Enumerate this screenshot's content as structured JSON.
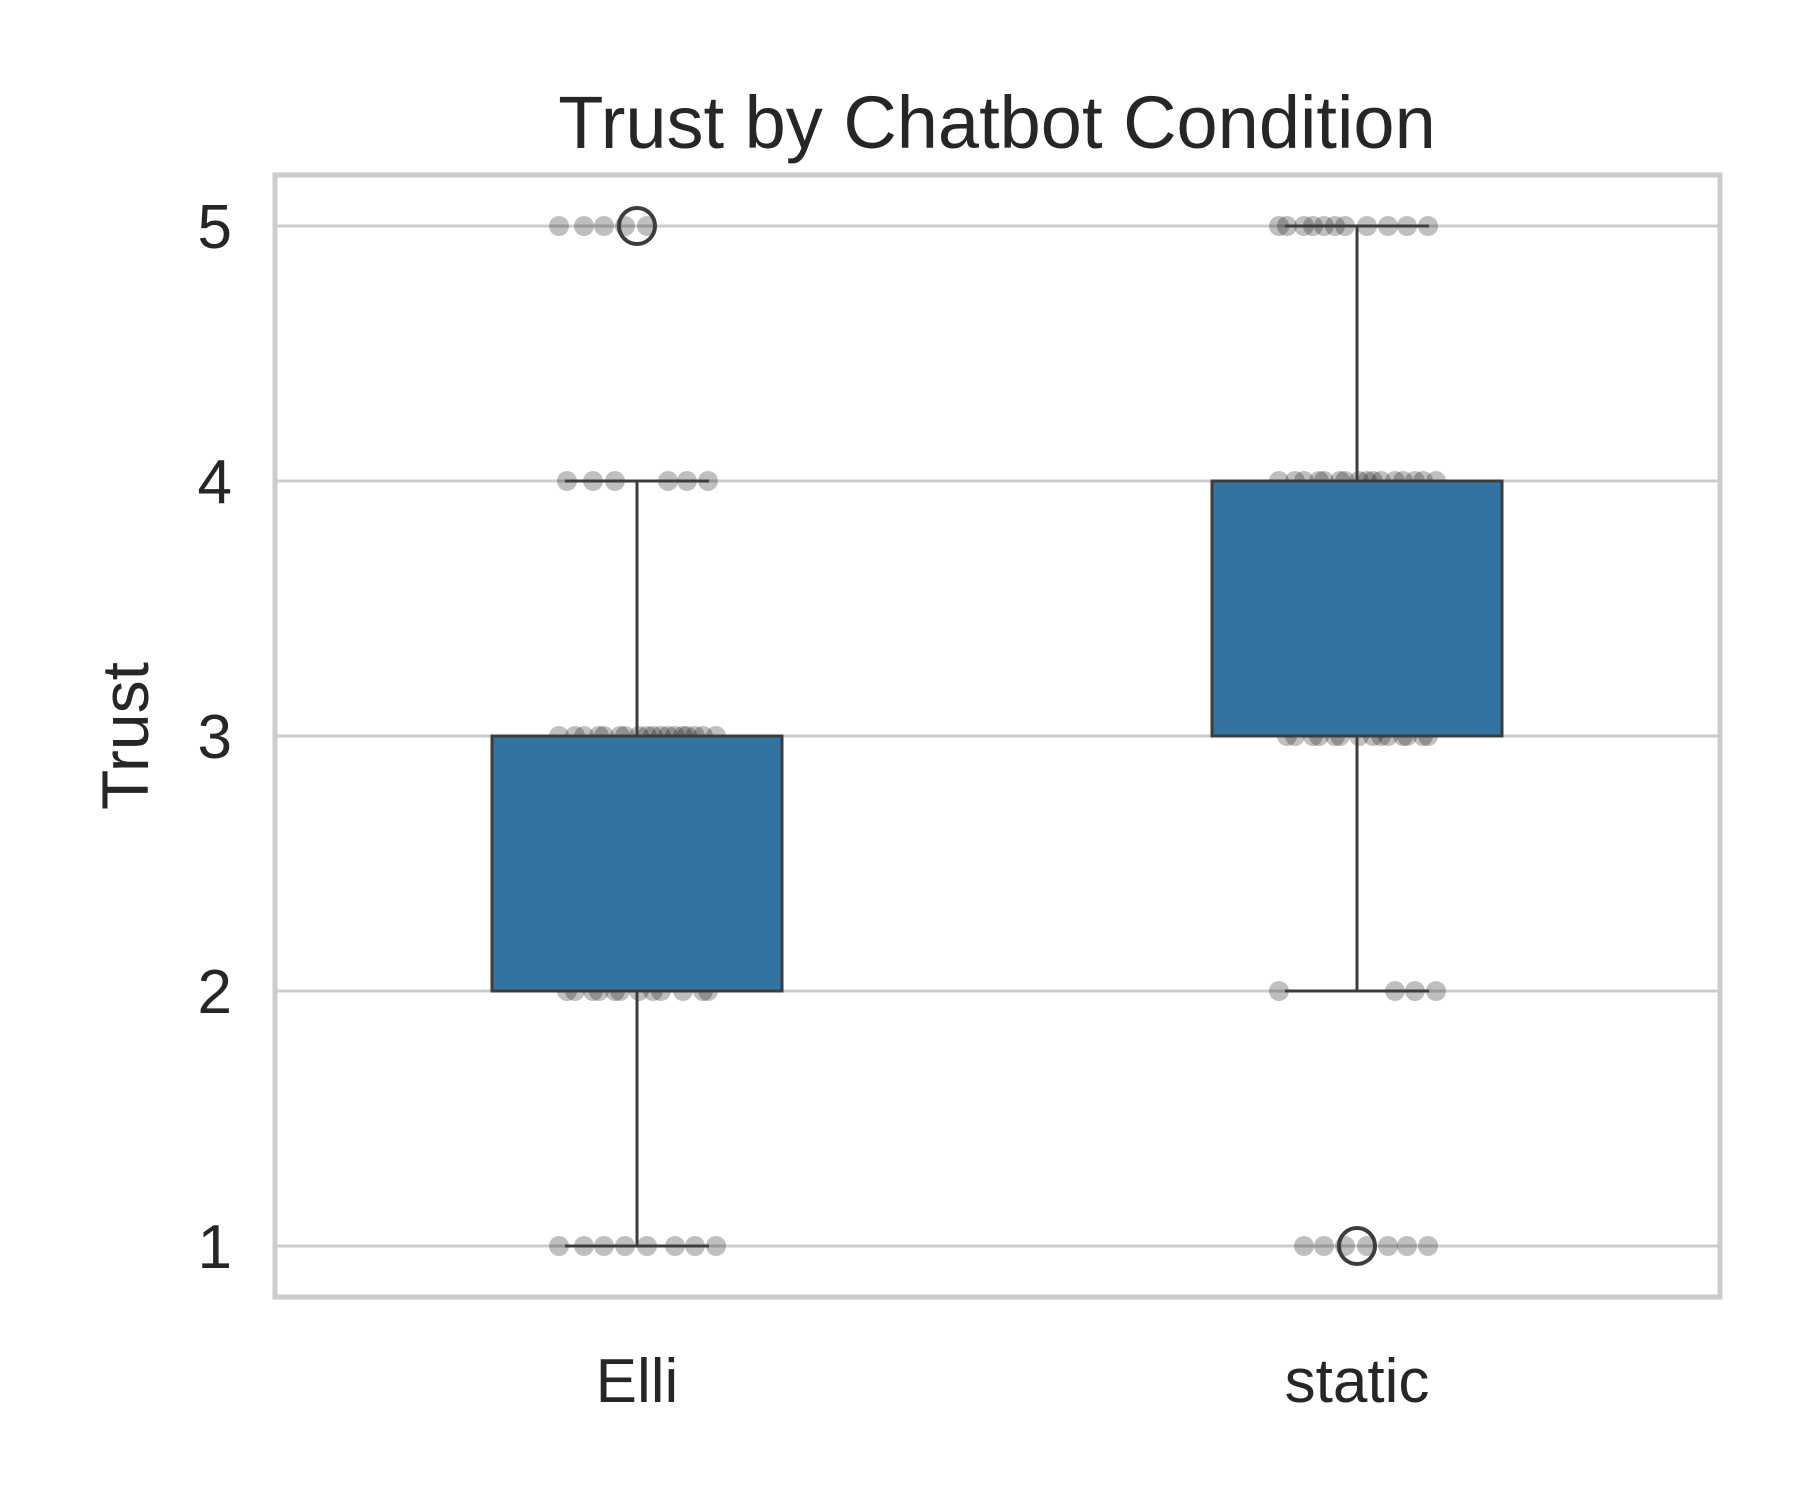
{
  "chart_data": {
    "type": "box",
    "title": "Trust by Chatbot Condition",
    "xlabel": "",
    "ylabel": "Trust",
    "categories": [
      "Elli",
      "static"
    ],
    "ylim": [
      0.8,
      5.2
    ],
    "yticks": [
      1,
      2,
      3,
      4,
      5
    ],
    "grid": true,
    "legend": "none",
    "box_color": "#3274a1",
    "grid_color": "#cccccc",
    "point_color": "#000000",
    "boxes": [
      {
        "category": "Elli",
        "whisker_low": 1,
        "q1": 2,
        "median": 3,
        "q3": 3,
        "whisker_high": 4,
        "outliers": [
          5
        ]
      },
      {
        "category": "static",
        "whisker_low": 2,
        "q1": 3,
        "median": 4,
        "q3": 4,
        "whisker_high": 5,
        "outliers": [
          1
        ]
      }
    ],
    "points": [
      {
        "category": "Elli",
        "values": [
          5,
          5,
          5,
          5,
          5,
          4,
          4,
          4,
          4,
          4,
          4,
          3,
          3,
          3,
          3,
          3,
          3,
          3,
          3,
          3,
          3,
          3,
          3,
          3,
          3,
          3,
          3,
          3,
          3,
          2,
          2,
          2,
          2,
          2,
          2,
          2,
          2,
          2,
          2,
          2,
          2,
          1,
          1,
          1,
          1,
          1,
          1,
          1,
          1
        ]
      },
      {
        "category": "static",
        "values": [
          5,
          5,
          5,
          5,
          5,
          5,
          5,
          5,
          5,
          5,
          5,
          4,
          4,
          4,
          4,
          4,
          4,
          4,
          4,
          4,
          4,
          4,
          4,
          4,
          4,
          4,
          4,
          3,
          3,
          3,
          3,
          3,
          3,
          3,
          3,
          3,
          3,
          3,
          3,
          3,
          3,
          2,
          2,
          2,
          2,
          1,
          1,
          1,
          1,
          1,
          1,
          1
        ]
      }
    ]
  }
}
